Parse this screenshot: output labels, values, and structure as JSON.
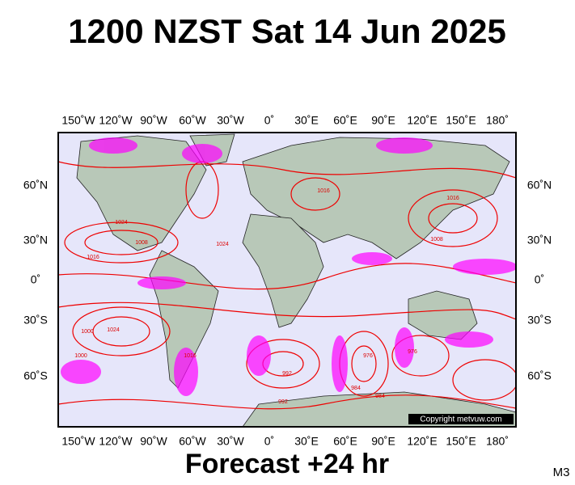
{
  "title": "1200 NZST Sat 14 Jun 2025",
  "map": {
    "lon_labels": [
      "150˚W",
      "120˚W",
      "90˚W",
      "60˚W",
      "30˚W",
      "0˚",
      "30˚E",
      "60˚E",
      "90˚E",
      "120˚E",
      "150˚E",
      "180˚"
    ],
    "lat_labels": [
      "60˚N",
      "30˚N",
      "0˚",
      "30˚S",
      "60˚S"
    ],
    "isobar_labels": [
      "1024",
      "1016",
      "1008",
      "1016",
      "1024",
      "1000",
      "1016",
      "1008",
      "1024",
      "1000",
      "992",
      "984",
      "976",
      "1016",
      "992",
      "984",
      "976"
    ],
    "copyright": "Copyright metvuw.com"
  },
  "footer": {
    "forecast": "Forecast +24 hr",
    "model": "M3"
  }
}
